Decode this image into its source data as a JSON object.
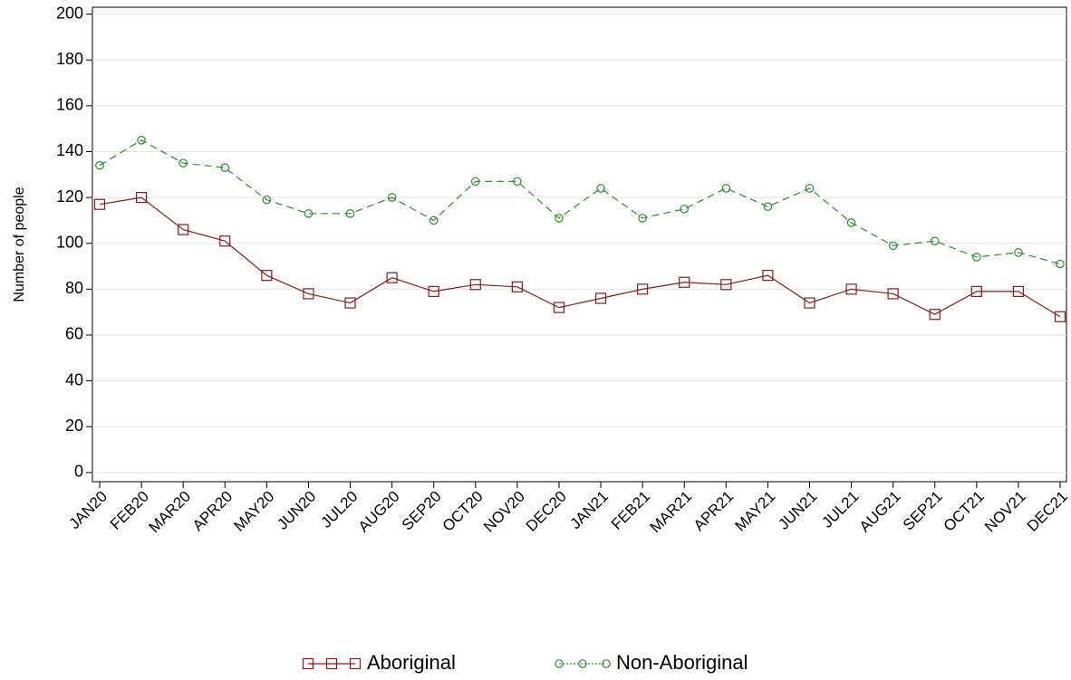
{
  "chart_data": {
    "type": "line",
    "y_label": "Number of people",
    "categories": [
      "JAN20",
      "FEB20",
      "MAR20",
      "APR20",
      "MAY20",
      "JUN20",
      "JUL20",
      "AUG20",
      "SEP20",
      "OCT20",
      "NOV20",
      "DEC20",
      "JAN21",
      "FEB21",
      "MAR21",
      "APR21",
      "MAY21",
      "JUN21",
      "JUL21",
      "AUG21",
      "SEP21",
      "OCT21",
      "NOV21",
      "DEC21"
    ],
    "series": [
      {
        "name": "Aboriginal",
        "color": "#8b1a1a",
        "marker": "square",
        "dash": "solid",
        "values": [
          117,
          120,
          106,
          101,
          86,
          78,
          74,
          85,
          79,
          82,
          81,
          72,
          76,
          80,
          83,
          82,
          86,
          74,
          80,
          78,
          69,
          79,
          79,
          68
        ]
      },
      {
        "name": "Non-Aboriginal",
        "color": "#2e8b2e",
        "marker": "circle",
        "dash": "dashed",
        "values": [
          134,
          145,
          135,
          133,
          119,
          113,
          113,
          120,
          110,
          127,
          127,
          111,
          124,
          111,
          115,
          124,
          116,
          124,
          109,
          99,
          101,
          94,
          96,
          91
        ]
      }
    ],
    "ylim": [
      -4,
      203
    ],
    "yticks": [
      0,
      20,
      40,
      60,
      80,
      100,
      120,
      140,
      160,
      180,
      200
    ],
    "grid": true
  }
}
